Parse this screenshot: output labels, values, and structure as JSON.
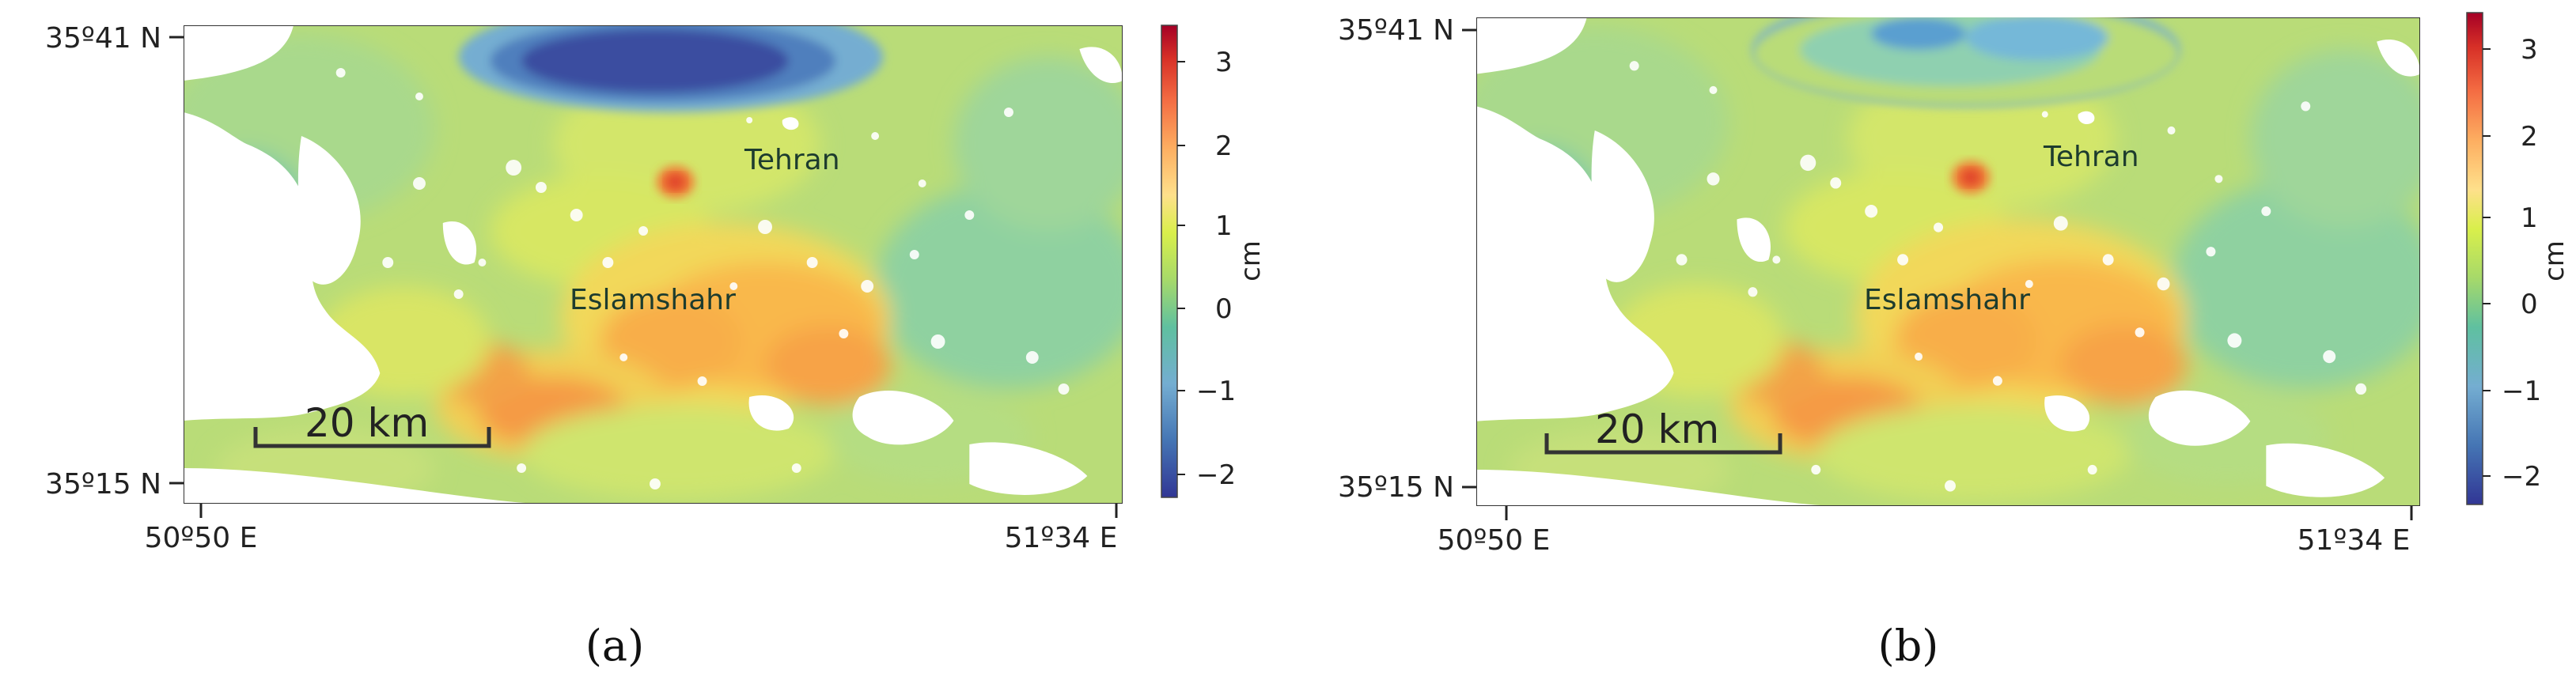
{
  "figure": {
    "panels": [
      {
        "id": "a",
        "caption": "(a)",
        "lat_top": "35º41 N",
        "lat_bottom": "35º15 N",
        "lon_left": "50º50 E",
        "lon_right": "51º34 E",
        "places": [
          "Tehran",
          "Eslamshahr"
        ],
        "scale_bar": "20 km",
        "colorbar_unit": "cm",
        "colorbar_ticks": [
          "3",
          "2",
          "1",
          "0",
          "−1",
          "−2"
        ]
      },
      {
        "id": "b",
        "caption": "(b)",
        "lat_top": "35º41 N",
        "lat_bottom": "35º15 N",
        "lon_left": "50º50 E",
        "lon_right": "51º34 E",
        "places": [
          "Tehran",
          "Eslamshahr"
        ],
        "scale_bar": "20 km",
        "colorbar_unit": "cm",
        "colorbar_ticks": [
          "3",
          "2",
          "1",
          "0",
          "−1",
          "−2"
        ]
      }
    ],
    "colors": {
      "colormap": [
        "#313695",
        "#4575b4",
        "#74add1",
        "#5fc0a0",
        "#a6d96a",
        "#d9ef4b",
        "#fee08b",
        "#fdae61",
        "#f46d43",
        "#d73027",
        "#a50026"
      ]
    }
  }
}
